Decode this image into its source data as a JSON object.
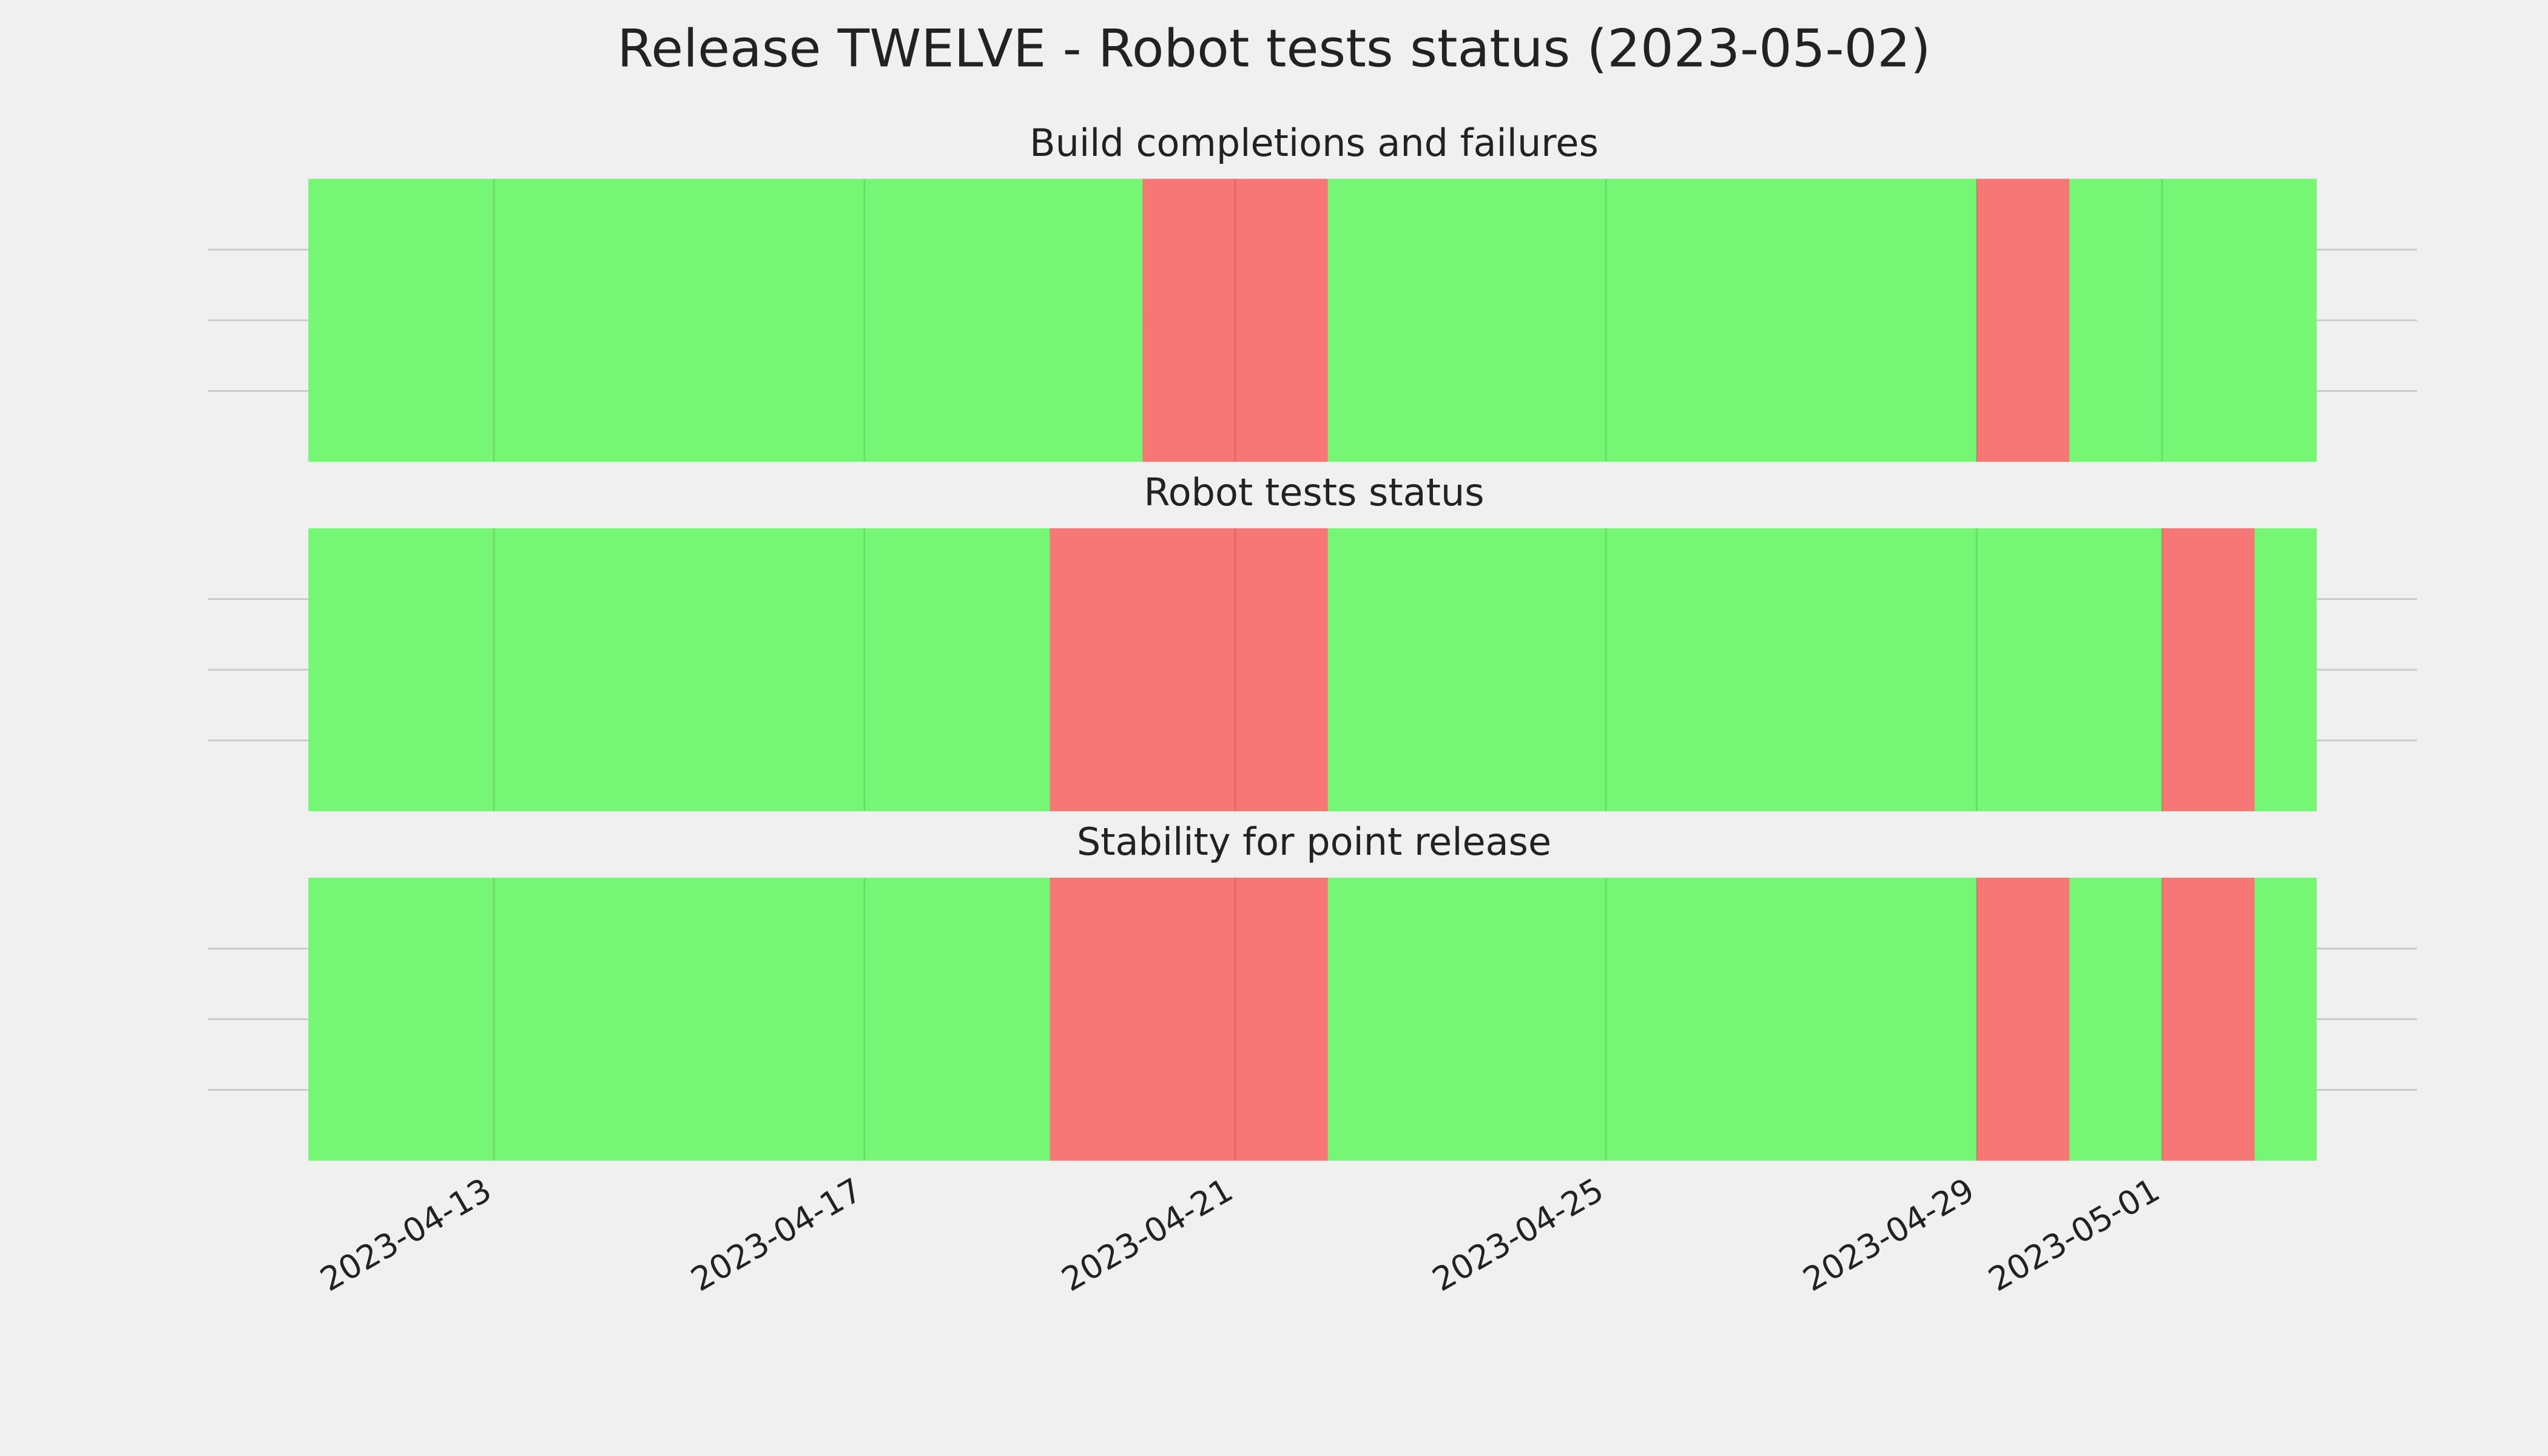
{
  "title": "Release TWELVE - Robot tests status (2023-05-02)",
  "chart_data": [
    {
      "type": "timeline",
      "title": "Build completions and failures",
      "grid": true,
      "spans": [
        {
          "start": "2023-04-11",
          "end": "2023-04-20",
          "color": "#75f775"
        },
        {
          "start": "2023-04-20",
          "end": "2023-04-22",
          "color": "#f77777"
        },
        {
          "start": "2023-04-22",
          "end": "2023-04-29",
          "color": "#75f775"
        },
        {
          "start": "2023-04-29",
          "end": "2023-04-30",
          "color": "#f77777"
        },
        {
          "start": "2023-04-30",
          "end": "2023-05-02T16:00",
          "color": "#75f775"
        }
      ],
      "xticks": [
        "2023-04-13",
        "2023-04-17",
        "2023-04-21",
        "2023-04-25",
        "2023-04-29",
        "2023-05-01"
      ]
    },
    {
      "type": "timeline",
      "title": "Robot tests status",
      "grid": true,
      "spans": [
        {
          "start": "2023-04-11",
          "end": "2023-04-19",
          "color": "#75f775"
        },
        {
          "start": "2023-04-19",
          "end": "2023-04-22",
          "color": "#f77777"
        },
        {
          "start": "2023-04-22",
          "end": "2023-05-01",
          "color": "#75f775"
        },
        {
          "start": "2023-05-01",
          "end": "2023-05-02",
          "color": "#f77777"
        },
        {
          "start": "2023-05-02",
          "end": "2023-05-02T16:00",
          "color": "#75f775"
        }
      ],
      "xticks": [
        "2023-04-13",
        "2023-04-17",
        "2023-04-21",
        "2023-04-25",
        "2023-04-29",
        "2023-05-01"
      ]
    },
    {
      "type": "timeline",
      "title": "Stability for point release",
      "grid": true,
      "spans": [
        {
          "start": "2023-04-11",
          "end": "2023-04-19",
          "color": "#75f775"
        },
        {
          "start": "2023-04-19",
          "end": "2023-04-22",
          "color": "#f77777"
        },
        {
          "start": "2023-04-22",
          "end": "2023-04-29",
          "color": "#75f775"
        },
        {
          "start": "2023-04-29",
          "end": "2023-04-30",
          "color": "#f77777"
        },
        {
          "start": "2023-04-30",
          "end": "2023-05-01",
          "color": "#75f775"
        },
        {
          "start": "2023-05-01",
          "end": "2023-05-02",
          "color": "#f77777"
        },
        {
          "start": "2023-05-02",
          "end": "2023-05-02T16:00",
          "color": "#75f775"
        }
      ],
      "xticks": [
        "2023-04-13",
        "2023-04-17",
        "2023-04-21",
        "2023-04-25",
        "2023-04-29",
        "2023-05-01"
      ],
      "show_tick_labels": true
    }
  ]
}
